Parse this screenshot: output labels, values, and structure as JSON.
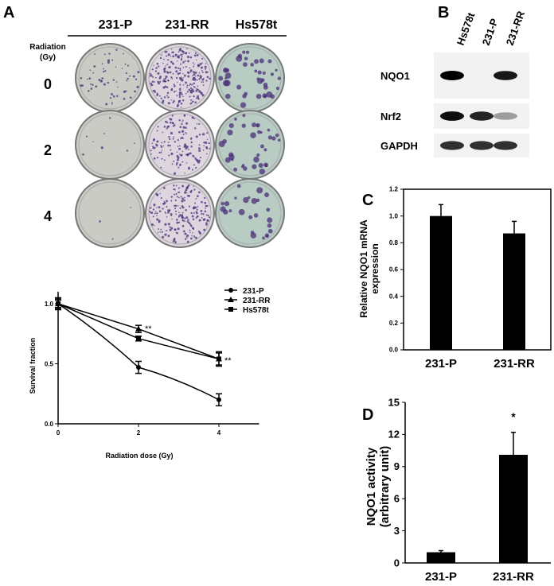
{
  "panel_labels": {
    "a": "A",
    "b": "B",
    "c": "C",
    "d": "D"
  },
  "colonies": {
    "columns": [
      "231-P",
      "231-RR",
      "Hs578t"
    ],
    "row_header": [
      "Radiation",
      "(Gy)"
    ],
    "rows": [
      "0",
      "2",
      "4"
    ],
    "dish_colors": {
      "231-P": "#c9cbc4",
      "231-RR": "#ddd6df",
      "Hs578t": "#b8ccc4"
    },
    "colony_color": "#4a2f7a"
  },
  "blot": {
    "lanes": [
      "Hs578t",
      "231-P",
      "231-RR"
    ],
    "proteins": [
      "NQO1",
      "Nrf2",
      "GAPDH"
    ],
    "band_intensity": {
      "NQO1": [
        1.0,
        0.0,
        0.9
      ],
      "Nrf2": [
        0.95,
        0.85,
        0.35
      ],
      "GAPDH": [
        0.8,
        0.8,
        0.8
      ]
    }
  },
  "chart_data": [
    {
      "type": "line",
      "xlabel": "Radiation dose (Gy)",
      "ylabel": "Survival fraction",
      "x": [
        0,
        2,
        4
      ],
      "xticks": [
        "0",
        "2",
        "4"
      ],
      "yticks": [
        "0.0",
        "0.5",
        "1.0"
      ],
      "xlim": [
        0,
        5
      ],
      "ylim": [
        0,
        1.1
      ],
      "legend": "top-right",
      "series": [
        {
          "name": "231-P",
          "marker": "circle",
          "values": [
            1.0,
            0.47,
            0.2
          ],
          "errors": [
            0.04,
            0.05,
            0.05
          ]
        },
        {
          "name": "231-RR",
          "marker": "triangle",
          "values": [
            1.0,
            0.79,
            0.54
          ],
          "errors": [
            0.03,
            0.03,
            0.05
          ]
        },
        {
          "name": "Hs578t",
          "marker": "square",
          "values": [
            1.0,
            0.71,
            0.54
          ],
          "errors": [
            0.05,
            0.02,
            0.06
          ]
        }
      ],
      "annotations": [
        "**",
        "**"
      ]
    },
    {
      "type": "bar",
      "ylabel": "Relative NQO1 mRNA expression",
      "categories": [
        "231-P",
        "231-RR"
      ],
      "values": [
        1.0,
        0.87
      ],
      "errors": [
        0.085,
        0.09
      ],
      "yticks": [
        "0.0",
        "0.2",
        "0.4",
        "0.6",
        "0.8",
        "1.0",
        "1.2"
      ],
      "ylim": [
        0,
        1.2
      ]
    },
    {
      "type": "bar",
      "ylabel": "NQO1 activity (arbitrary unit)",
      "ylabel_lines": [
        "NQO1 activity",
        "(arbitrary unit)"
      ],
      "categories": [
        "231-P",
        "231-RR"
      ],
      "values": [
        1.0,
        10.1
      ],
      "errors": [
        0.15,
        2.1
      ],
      "yticks": [
        "0",
        "3",
        "6",
        "9",
        "12",
        "15"
      ],
      "ylim": [
        0,
        15
      ],
      "annotations": [
        "*"
      ]
    }
  ]
}
